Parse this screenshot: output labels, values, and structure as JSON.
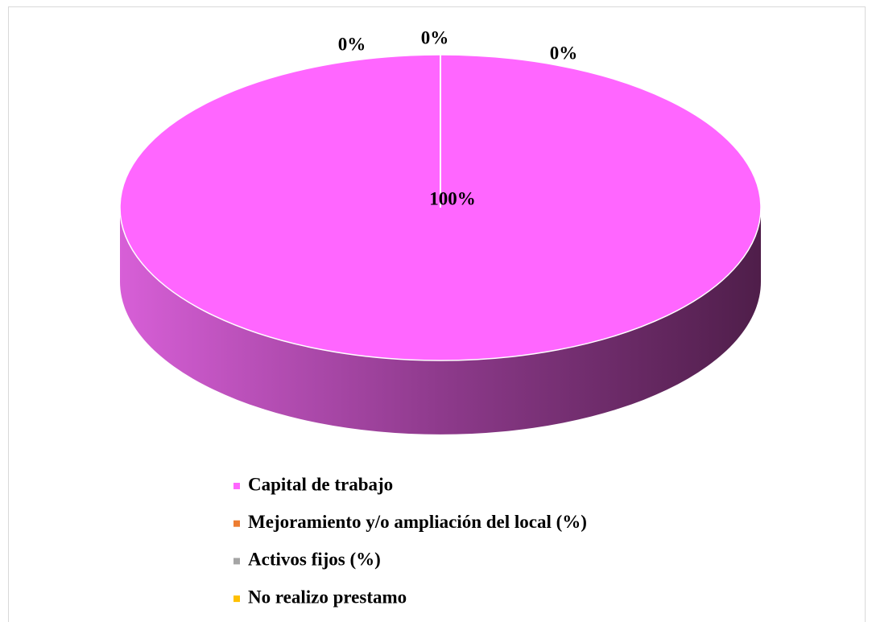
{
  "chart_data": {
    "type": "pie",
    "categories": [
      "Capital de trabajo",
      "Mejoramiento y/o ampliación del local (%)",
      "Activos fijos (%)",
      "No realizo prestamo"
    ],
    "values": [
      100,
      0,
      0,
      0
    ],
    "value_labels": [
      "100%",
      "0%",
      "0%",
      "0%"
    ],
    "colors": [
      "#ff66ff",
      "#ed7d31",
      "#a5a5a5",
      "#ffc000"
    ],
    "legend": "bottom"
  }
}
